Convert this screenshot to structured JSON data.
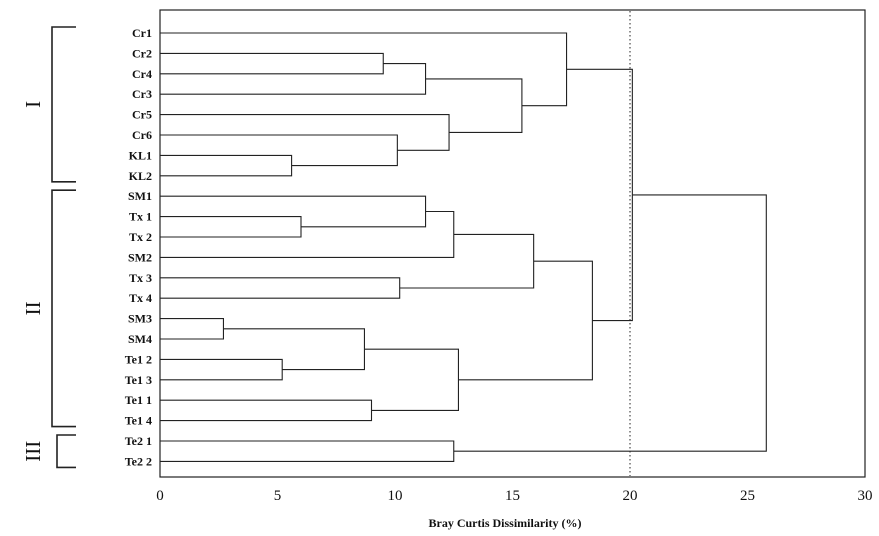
{
  "chart_data": {
    "type": "dendrogram",
    "xlabel": "Bray Curtis Dissimilarity (%)",
    "xlim": [
      0,
      30
    ],
    "xticks": [
      0,
      5,
      10,
      15,
      20,
      25,
      30
    ],
    "threshold": 20,
    "leaves": [
      "Cr1",
      "Cr2",
      "Cr4",
      "Cr3",
      "Cr5",
      "Cr6",
      "KL1",
      "KL2",
      "SM1",
      "Tx 1",
      "Tx 2",
      "SM2",
      "Tx 3",
      "Tx 4",
      "SM3",
      "SM4",
      "Te1 2",
      "Te1 3",
      "Te1 1",
      "Te1 4",
      "Te2 1",
      "Te2 2"
    ],
    "merges": [
      {
        "id": "m1",
        "a": "SM3",
        "b": "SM4",
        "height": 2.7
      },
      {
        "id": "m2",
        "a": "Te1 2",
        "b": "Te1 3",
        "height": 5.2
      },
      {
        "id": "m3",
        "a": "KL1",
        "b": "KL2",
        "height": 5.6
      },
      {
        "id": "m4",
        "a": "Tx 1",
        "b": "Tx 2",
        "height": 6.0
      },
      {
        "id": "m5",
        "a": "m1",
        "b": "m2",
        "height": 8.7
      },
      {
        "id": "m6",
        "a": "Te1 1",
        "b": "Te1 4",
        "height": 9.0
      },
      {
        "id": "m7",
        "a": "Cr2",
        "b": "Cr4",
        "height": 9.5
      },
      {
        "id": "m8",
        "a": "Cr6",
        "b": "m3",
        "height": 10.1
      },
      {
        "id": "m9",
        "a": "Tx 3",
        "b": "Tx 4",
        "height": 10.2
      },
      {
        "id": "m10",
        "a": "SM1",
        "b": "m4",
        "height": 11.3
      },
      {
        "id": "m11",
        "a": "m7",
        "b": "Cr3",
        "height": 11.3
      },
      {
        "id": "m12",
        "a": "Cr5",
        "b": "m8",
        "height": 12.3
      },
      {
        "id": "m13",
        "a": "m10",
        "b": "SM2",
        "height": 12.5
      },
      {
        "id": "m14",
        "a": "Te2 1",
        "b": "Te2 2",
        "height": 12.5
      },
      {
        "id": "m15",
        "a": "m5",
        "b": "m6",
        "height": 12.7
      },
      {
        "id": "m16",
        "a": "m11",
        "b": "m12",
        "height": 15.4
      },
      {
        "id": "m17",
        "a": "m13",
        "b": "m9",
        "height": 15.9
      },
      {
        "id": "m18",
        "a": "Cr1",
        "b": "m16",
        "height": 17.3
      },
      {
        "id": "m19",
        "a": "m17",
        "b": "m15",
        "height": 18.4
      },
      {
        "id": "m20",
        "a": "m18",
        "b": "m19",
        "height": 20.1
      },
      {
        "id": "m21",
        "a": "m20",
        "b": "m14",
        "height": 25.8
      }
    ],
    "groups": [
      {
        "label": "I",
        "from": "Cr1",
        "to": "KL2"
      },
      {
        "label": "II",
        "from": "SM1",
        "to": "Te1 4"
      },
      {
        "label": "III",
        "from": "Te2 1",
        "to": "Te2 2"
      }
    ]
  }
}
